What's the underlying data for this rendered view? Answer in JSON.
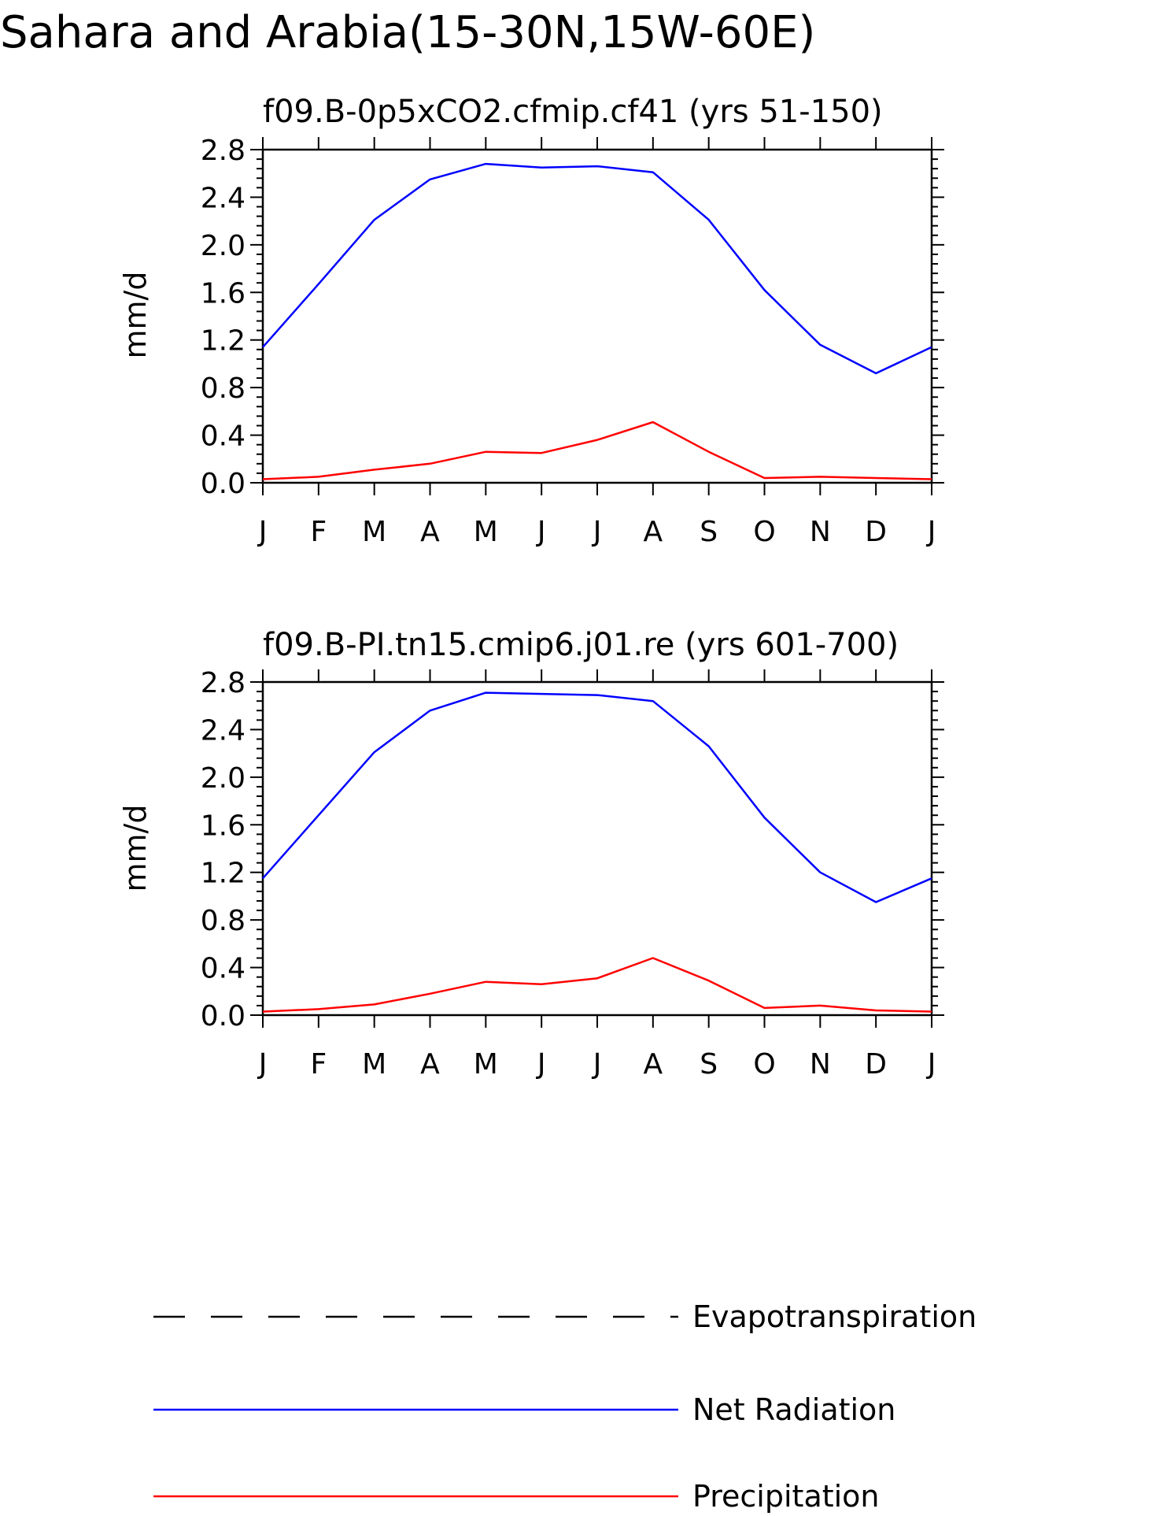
{
  "figure": {
    "title": "Sahara and Arabia(15-30N,15W-60E)"
  },
  "legend": [
    {
      "label": "Evapotranspiration",
      "color": "#000000",
      "style": "dashed"
    },
    {
      "label": "Net Radiation",
      "color": "#0000ff",
      "style": "solid"
    },
    {
      "label": "Precipitation",
      "color": "#ff0000",
      "style": "solid"
    }
  ],
  "chart_data": [
    {
      "type": "line",
      "title": "f09.B-0p5xCO2.cfmip.cf41 (yrs 51-150)",
      "xlabel": "",
      "ylabel": "mm/d",
      "categories": [
        "J",
        "F",
        "M",
        "A",
        "M",
        "J",
        "J",
        "A",
        "S",
        "O",
        "N",
        "D",
        "J"
      ],
      "ylim": [
        0.0,
        2.8
      ],
      "yticks": [
        "0.0",
        "0.4",
        "0.8",
        "1.2",
        "1.6",
        "2.0",
        "2.4",
        "2.8"
      ],
      "grid": false,
      "series": [
        {
          "name": "Net Radiation",
          "color": "#0000ff",
          "values": [
            1.14,
            1.67,
            2.21,
            2.55,
            2.68,
            2.65,
            2.66,
            2.61,
            2.21,
            1.62,
            1.16,
            0.92,
            1.14
          ]
        },
        {
          "name": "Precipitation",
          "color": "#ff0000",
          "values": [
            0.03,
            0.05,
            0.11,
            0.16,
            0.26,
            0.25,
            0.36,
            0.51,
            0.26,
            0.04,
            0.05,
            0.04,
            0.03
          ]
        }
      ]
    },
    {
      "type": "line",
      "title": "f09.B-PI.tn15.cmip6.j01.re (yrs 601-700)",
      "xlabel": "",
      "ylabel": "mm/d",
      "categories": [
        "J",
        "F",
        "M",
        "A",
        "M",
        "J",
        "J",
        "A",
        "S",
        "O",
        "N",
        "D",
        "J"
      ],
      "ylim": [
        0.0,
        2.8
      ],
      "yticks": [
        "0.0",
        "0.4",
        "0.8",
        "1.2",
        "1.6",
        "2.0",
        "2.4",
        "2.8"
      ],
      "grid": false,
      "series": [
        {
          "name": "Net Radiation",
          "color": "#0000ff",
          "values": [
            1.15,
            1.68,
            2.21,
            2.56,
            2.71,
            2.7,
            2.69,
            2.64,
            2.26,
            1.66,
            1.2,
            0.95,
            1.15
          ]
        },
        {
          "name": "Precipitation",
          "color": "#ff0000",
          "values": [
            0.03,
            0.05,
            0.09,
            0.18,
            0.28,
            0.26,
            0.31,
            0.48,
            0.29,
            0.06,
            0.08,
            0.04,
            0.03
          ]
        }
      ]
    }
  ]
}
